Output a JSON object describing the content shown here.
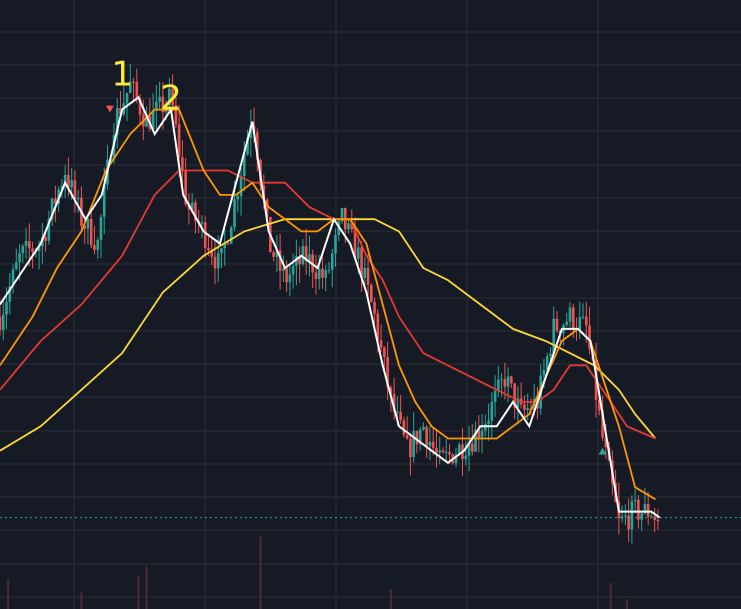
{
  "chart_data": {
    "type": "candlestick",
    "grid": true,
    "legend": "none",
    "colors": {
      "background": "#161a25",
      "grid": "#2a2e39",
      "up": "#26a69a",
      "down": "#ef5350",
      "ma_fast": "#ffffff",
      "ma_mid": "#ff9800",
      "ma_slow": "#e53935",
      "ma_long": "#fdd835",
      "price_line": "#26a69a",
      "annotation": "#ffeb3b"
    },
    "annotations": [
      {
        "text": "1",
        "x": 30,
        "y": 103
      },
      {
        "text": "2",
        "x": 42,
        "y": 101
      }
    ],
    "markers": [
      {
        "type": "down-arrow",
        "x": 27,
        "y": 101,
        "color": "#ef5350"
      },
      {
        "type": "up-arrow",
        "x": 148,
        "y": 73,
        "color": "#26a69a"
      }
    ],
    "current_price": 67.5,
    "ylim": [
      60,
      110
    ],
    "xlim": [
      0,
      182
    ],
    "price_path": [
      [
        0,
        84
      ],
      [
        5,
        89
      ],
      [
        10,
        90
      ],
      [
        16,
        96
      ],
      [
        20,
        92
      ],
      [
        24,
        90
      ],
      [
        28,
        100
      ],
      [
        32,
        103
      ],
      [
        36,
        100
      ],
      [
        42,
        102
      ],
      [
        46,
        93
      ],
      [
        50,
        91
      ],
      [
        54,
        88
      ],
      [
        58,
        94
      ],
      [
        62,
        101
      ],
      [
        66,
        90
      ],
      [
        70,
        87
      ],
      [
        75,
        89
      ],
      [
        80,
        87
      ],
      [
        84,
        92
      ],
      [
        88,
        89
      ],
      [
        92,
        84
      ],
      [
        96,
        77
      ],
      [
        100,
        73
      ],
      [
        104,
        75
      ],
      [
        108,
        72
      ],
      [
        112,
        73
      ],
      [
        116,
        74
      ],
      [
        120,
        76
      ],
      [
        124,
        79
      ],
      [
        128,
        76
      ],
      [
        132,
        77
      ],
      [
        136,
        83
      ],
      [
        140,
        84
      ],
      [
        144,
        83
      ],
      [
        148,
        74
      ],
      [
        152,
        67
      ],
      [
        156,
        68
      ],
      [
        160,
        68
      ],
      [
        162,
        67
      ]
    ],
    "ma_fast": [
      [
        0,
        85
      ],
      [
        6,
        88
      ],
      [
        10,
        90
      ],
      [
        16,
        95
      ],
      [
        21,
        92
      ],
      [
        25,
        94
      ],
      [
        30,
        101
      ],
      [
        34,
        102
      ],
      [
        38,
        99
      ],
      [
        42,
        101
      ],
      [
        45,
        94
      ],
      [
        50,
        91
      ],
      [
        54,
        90
      ],
      [
        58,
        95
      ],
      [
        62,
        100
      ],
      [
        66,
        91
      ],
      [
        70,
        88
      ],
      [
        74,
        89
      ],
      [
        78,
        88
      ],
      [
        82,
        92
      ],
      [
        86,
        90
      ],
      [
        90,
        86
      ],
      [
        94,
        80
      ],
      [
        98,
        75
      ],
      [
        102,
        74
      ],
      [
        106,
        73
      ],
      [
        110,
        72
      ],
      [
        114,
        73
      ],
      [
        118,
        75
      ],
      [
        122,
        75
      ],
      [
        126,
        77
      ],
      [
        130,
        75
      ],
      [
        134,
        79
      ],
      [
        138,
        83
      ],
      [
        142,
        83
      ],
      [
        145,
        82
      ],
      [
        148,
        76
      ],
      [
        152,
        68
      ],
      [
        156,
        68
      ],
      [
        160,
        68
      ],
      [
        162,
        67.5
      ]
    ],
    "ma_mid": [
      [
        0,
        80
      ],
      [
        8,
        84
      ],
      [
        14,
        88
      ],
      [
        20,
        91
      ],
      [
        26,
        96
      ],
      [
        32,
        99
      ],
      [
        38,
        101
      ],
      [
        44,
        101
      ],
      [
        50,
        96
      ],
      [
        54,
        94
      ],
      [
        58,
        94
      ],
      [
        62,
        95
      ],
      [
        66,
        93
      ],
      [
        70,
        92
      ],
      [
        74,
        91
      ],
      [
        78,
        91
      ],
      [
        82,
        92
      ],
      [
        86,
        92
      ],
      [
        90,
        90
      ],
      [
        94,
        85
      ],
      [
        98,
        80
      ],
      [
        102,
        77
      ],
      [
        106,
        75
      ],
      [
        110,
        74
      ],
      [
        114,
        74
      ],
      [
        118,
        74
      ],
      [
        122,
        74
      ],
      [
        126,
        75
      ],
      [
        130,
        76
      ],
      [
        134,
        79
      ],
      [
        138,
        82
      ],
      [
        142,
        83
      ],
      [
        145,
        82
      ],
      [
        148,
        79
      ],
      [
        152,
        75
      ],
      [
        156,
        70
      ],
      [
        161,
        69
      ]
    ],
    "ma_slow": [
      [
        0,
        78
      ],
      [
        10,
        82
      ],
      [
        20,
        85
      ],
      [
        30,
        89
      ],
      [
        38,
        94
      ],
      [
        44,
        96
      ],
      [
        50,
        96
      ],
      [
        56,
        96
      ],
      [
        62,
        95
      ],
      [
        70,
        95
      ],
      [
        76,
        93
      ],
      [
        82,
        92
      ],
      [
        86,
        92
      ],
      [
        90,
        89
      ],
      [
        94,
        87
      ],
      [
        98,
        84
      ],
      [
        104,
        81
      ],
      [
        110,
        80
      ],
      [
        116,
        79
      ],
      [
        122,
        78
      ],
      [
        128,
        77
      ],
      [
        132,
        77
      ],
      [
        136,
        78
      ],
      [
        140,
        80
      ],
      [
        144,
        80
      ],
      [
        148,
        78
      ],
      [
        154,
        75
      ],
      [
        161,
        74
      ]
    ],
    "ma_long": [
      [
        0,
        73
      ],
      [
        10,
        75
      ],
      [
        20,
        78
      ],
      [
        30,
        81
      ],
      [
        40,
        86
      ],
      [
        50,
        89
      ],
      [
        60,
        91
      ],
      [
        70,
        92
      ],
      [
        80,
        92
      ],
      [
        88,
        92
      ],
      [
        92,
        92
      ],
      [
        98,
        91
      ],
      [
        104,
        88
      ],
      [
        110,
        87
      ],
      [
        118,
        85
      ],
      [
        126,
        83
      ],
      [
        134,
        82
      ],
      [
        140,
        81
      ],
      [
        146,
        80
      ],
      [
        152,
        78
      ],
      [
        156,
        76
      ],
      [
        161,
        74
      ]
    ],
    "volume_spikes": [
      [
        2,
        9
      ],
      [
        20,
        5
      ],
      [
        34,
        10
      ],
      [
        36,
        13
      ],
      [
        64,
        22
      ],
      [
        96,
        6
      ],
      [
        150,
        8
      ],
      [
        154,
        3
      ]
    ]
  }
}
